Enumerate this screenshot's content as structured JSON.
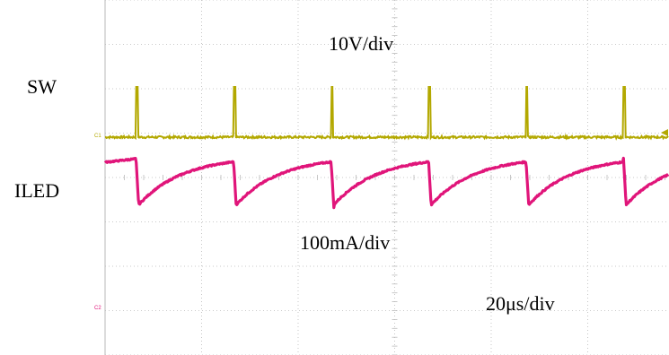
{
  "chart_data": {
    "type": "line",
    "grid": true,
    "divisions": {
      "horizontal": 10,
      "vertical": 8
    },
    "labels": {
      "sw": "SW",
      "iled": "ILED",
      "volts_per_div": "10V/div",
      "amps_per_div": "100mA/div",
      "time_per_div": "20μs/div",
      "ch1_marker": "C1",
      "ch2_marker": "C2"
    },
    "series": [
      {
        "name": "SW",
        "color": "#b3a800",
        "period_us": 20.2,
        "pulse_width_us": 0.4,
        "pulse_times_us": [
          6.4,
          26.6,
          46.8,
          67.0,
          87.2,
          107.4
        ],
        "baseline_V": 0,
        "peak_V": 11.5
      },
      {
        "name": "ILED",
        "color": "#e0157a",
        "period_us": 20.2,
        "valley_mA": -60,
        "peak_mA": 50,
        "drop_times_us": [
          6.4,
          26.6,
          46.8,
          67.0,
          87.2,
          107.4
        ]
      }
    ]
  }
}
